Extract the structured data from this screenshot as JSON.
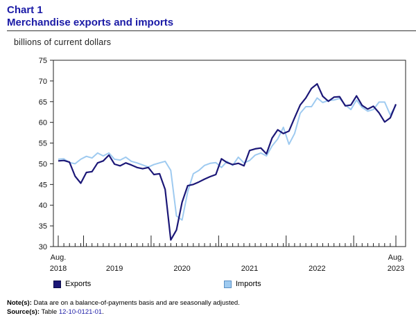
{
  "title": {
    "line1": "Chart 1",
    "line2": "Merchandise exports and imports"
  },
  "unit_label": "billions of current dollars",
  "colors": {
    "title": "#1a1aa6",
    "exports": "#1b1777",
    "imports": "#9ecaf0"
  },
  "chart_data": {
    "type": "line",
    "title": "Merchandise exports and imports",
    "ylabel": "billions of current dollars",
    "ylim": [
      30,
      75
    ],
    "yticks": [
      30,
      35,
      40,
      45,
      50,
      55,
      60,
      65,
      70,
      75
    ],
    "x_start": "Aug. 2018",
    "x_end": "Aug. 2023",
    "n_months": 61,
    "year_labels": [
      {
        "label": "2019",
        "month_index": 10
      },
      {
        "label": "2020",
        "month_index": 22
      },
      {
        "label": "2021",
        "month_index": 34
      },
      {
        "label": "2022",
        "month_index": 46
      }
    ],
    "start_label": {
      "line1": "Aug.",
      "line2": "2018"
    },
    "end_label": {
      "line1": "Aug.",
      "line2": "2023"
    },
    "series": [
      {
        "name": "Exports",
        "color": "#1b1777",
        "values": [
          50.7,
          50.8,
          50.4,
          47.0,
          45.3,
          47.9,
          48.1,
          50.2,
          50.7,
          52.1,
          49.9,
          49.5,
          50.2,
          49.7,
          49.1,
          48.8,
          49.1,
          47.4,
          47.6,
          43.8,
          31.6,
          34.0,
          40.7,
          44.7,
          45.0,
          45.6,
          46.3,
          46.9,
          47.4,
          51.2,
          50.3,
          49.8,
          50.1,
          49.5,
          53.2,
          53.6,
          53.8,
          52.4,
          56.2,
          58.2,
          57.3,
          57.9,
          61.1,
          64.2,
          65.9,
          68.2,
          69.3,
          66.3,
          65.1,
          66.1,
          66.2,
          64.0,
          64.2,
          66.4,
          64.1,
          63.2,
          63.9,
          62.3,
          60.1,
          61.1,
          64.4
        ]
      },
      {
        "name": "Imports",
        "color": "#9ecaf0",
        "values": [
          51.1,
          51.2,
          50.3,
          50.0,
          51.1,
          51.8,
          51.4,
          52.6,
          51.9,
          52.6,
          51.1,
          50.9,
          51.6,
          50.6,
          50.2,
          49.7,
          49.2,
          49.8,
          50.2,
          50.6,
          48.4,
          37.4,
          36.4,
          43.2,
          47.6,
          48.4,
          49.6,
          50.1,
          50.3,
          49.1,
          50.6,
          49.6,
          51.6,
          50.2,
          50.8,
          52.1,
          52.6,
          51.9,
          54.3,
          56.0,
          58.8,
          54.7,
          57.3,
          62.2,
          63.8,
          63.8,
          65.9,
          64.8,
          65.3,
          65.4,
          65.8,
          64.2,
          63.1,
          65.4,
          63.6,
          62.7,
          63.1,
          64.9,
          64.9,
          61.8,
          64.1
        ]
      }
    ]
  },
  "legend": {
    "exports_label": "Exports",
    "imports_label": "Imports"
  },
  "notes": {
    "note_label": "Note(s):",
    "note_text": " Data are on a balance-of-payments basis and are seasonally adjusted.",
    "source_label": "Source(s):",
    "source_prefix": " Table ",
    "source_link": "12-10-0121-01",
    "source_suffix": "."
  }
}
